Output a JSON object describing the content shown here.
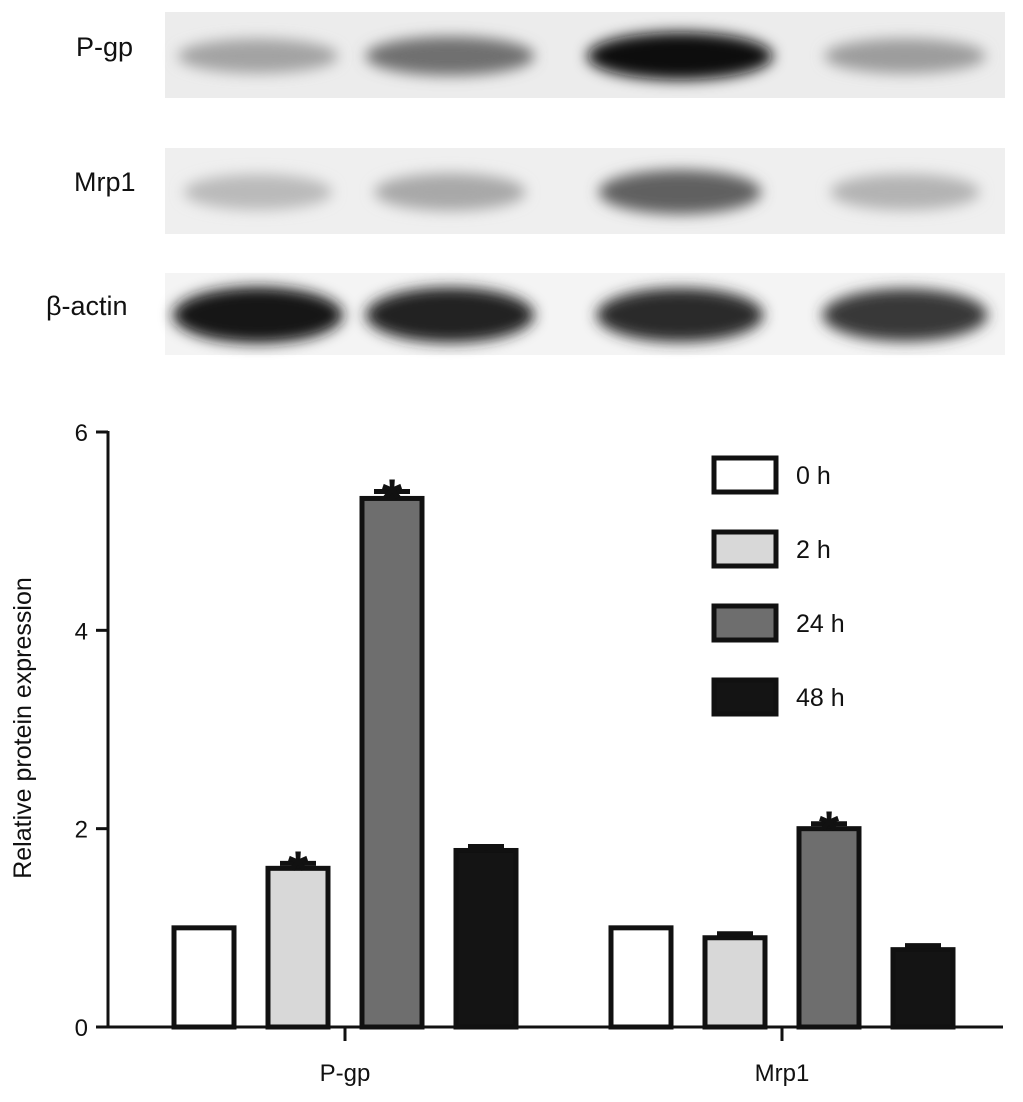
{
  "blot": {
    "rows": [
      {
        "label": "P-gp",
        "intensities": [
          0.32,
          0.55,
          1.0,
          0.35
        ]
      },
      {
        "label": "Mrp1",
        "intensities": [
          0.22,
          0.3,
          0.62,
          0.25
        ]
      },
      {
        "label": "β-actin",
        "intensities": [
          0.95,
          0.9,
          0.85,
          0.8
        ]
      }
    ]
  },
  "chart_data": {
    "type": "bar",
    "categories": [
      "P-gp",
      "Mrp1"
    ],
    "series": [
      {
        "name": "0 h",
        "values": [
          1.0,
          1.0
        ],
        "errors": [
          0,
          0
        ],
        "significant": [
          false,
          false
        ],
        "color": "#ffffff"
      },
      {
        "name": "2 h",
        "values": [
          1.6,
          0.9
        ],
        "errors": [
          0.05,
          0.04
        ],
        "significant": [
          true,
          false
        ],
        "color": "#d8d8d8"
      },
      {
        "name": "24 h",
        "values": [
          5.33,
          2.0
        ],
        "errors": [
          0.07,
          0.05
        ],
        "significant": [
          true,
          true
        ],
        "color": "#6e6e6e"
      },
      {
        "name": "48 h",
        "values": [
          1.78,
          0.78
        ],
        "errors": [
          0.04,
          0.04
        ],
        "significant": [
          false,
          false
        ],
        "color": "#141414"
      }
    ],
    "xlabel": "",
    "ylabel": "Relative protein expression",
    "ylim": [
      0,
      6
    ],
    "yticks": [
      "0",
      "2",
      "4",
      "6"
    ],
    "significance_marker": "*",
    "grid": false,
    "legend_position": "top-right"
  }
}
